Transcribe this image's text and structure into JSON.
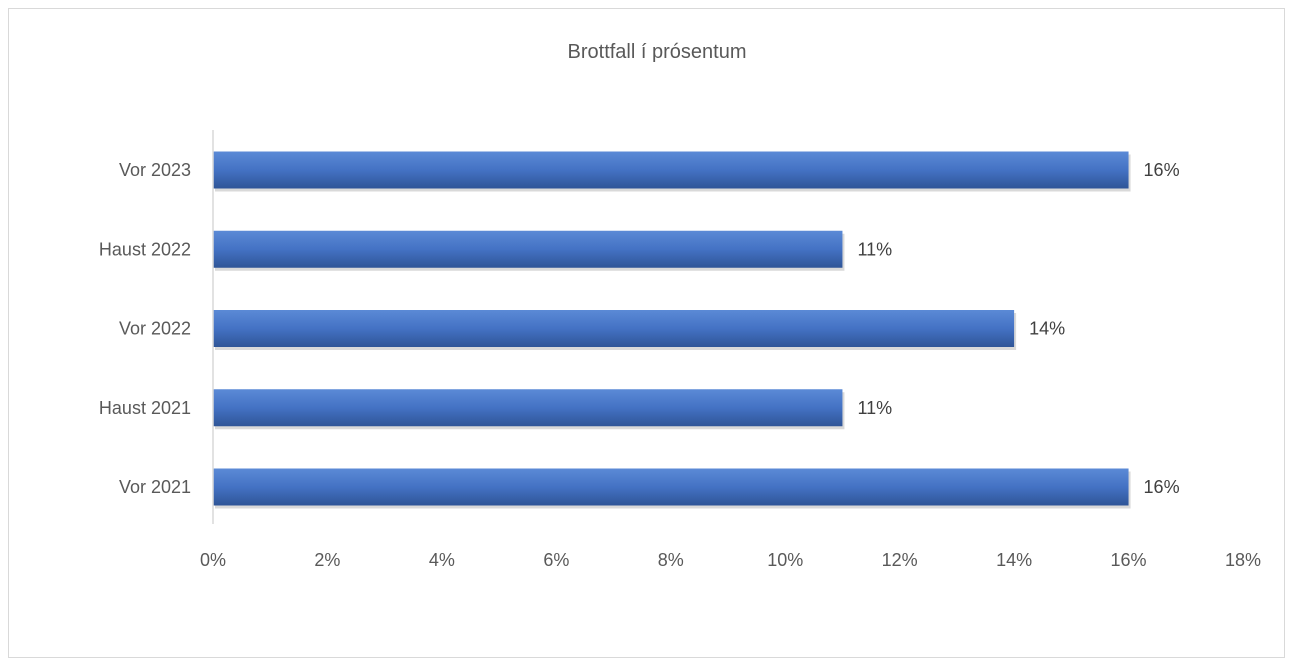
{
  "chart_data": {
    "type": "bar",
    "orientation": "horizontal",
    "title": "Brottfall í prósentum",
    "categories": [
      "Vor 2023",
      "Haust 2022",
      "Vor 2022",
      "Haust 2021",
      "Vor 2021"
    ],
    "values": [
      16,
      11,
      14,
      11,
      16
    ],
    "data_labels": [
      "16%",
      "11%",
      "14%",
      "11%",
      "16%"
    ],
    "xlim": [
      0,
      18
    ],
    "x_ticks": [
      0,
      2,
      4,
      6,
      8,
      10,
      12,
      14,
      16,
      18
    ],
    "x_tick_labels": [
      "0%",
      "2%",
      "4%",
      "6%",
      "8%",
      "10%",
      "12%",
      "14%",
      "16%",
      "18%"
    ],
    "xlabel": "",
    "ylabel": "",
    "grid": false,
    "legend": "none",
    "colors": {
      "bar": "#4472c4",
      "bar_dark": "#2f5597",
      "text": "#595959",
      "axis": "#d9d9d9"
    }
  }
}
